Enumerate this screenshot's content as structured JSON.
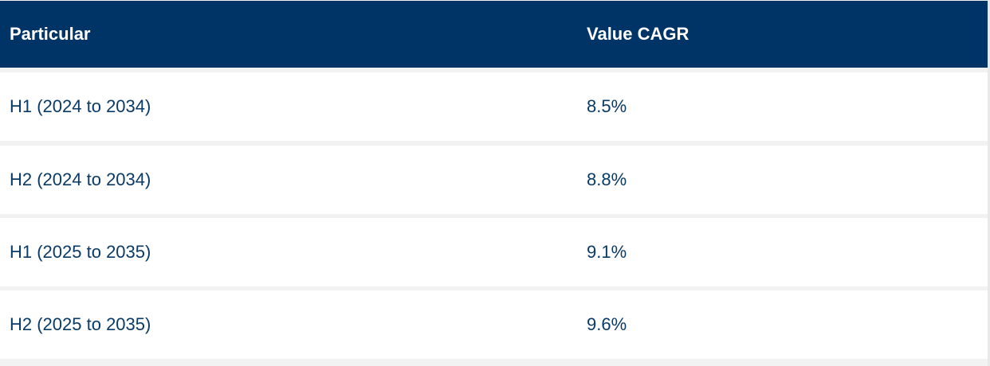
{
  "table": {
    "columns": [
      "Particular",
      "Value CAGR"
    ],
    "rows": [
      {
        "particular": "H1 (2024 to 2034)",
        "value": "8.5%"
      },
      {
        "particular": "H2 (2024 to 2034)",
        "value": "8.8%"
      },
      {
        "particular": "H1 (2025 to 2035)",
        "value": "9.1%"
      },
      {
        "particular": "H2 (2025 to 2035)",
        "value": "9.6%"
      }
    ]
  },
  "colors": {
    "header_bg": "#003366",
    "header_text": "#ffffff",
    "body_text": "#0a3a66",
    "row_bg": "#ffffff",
    "gap_bg": "#f2f2f2"
  }
}
